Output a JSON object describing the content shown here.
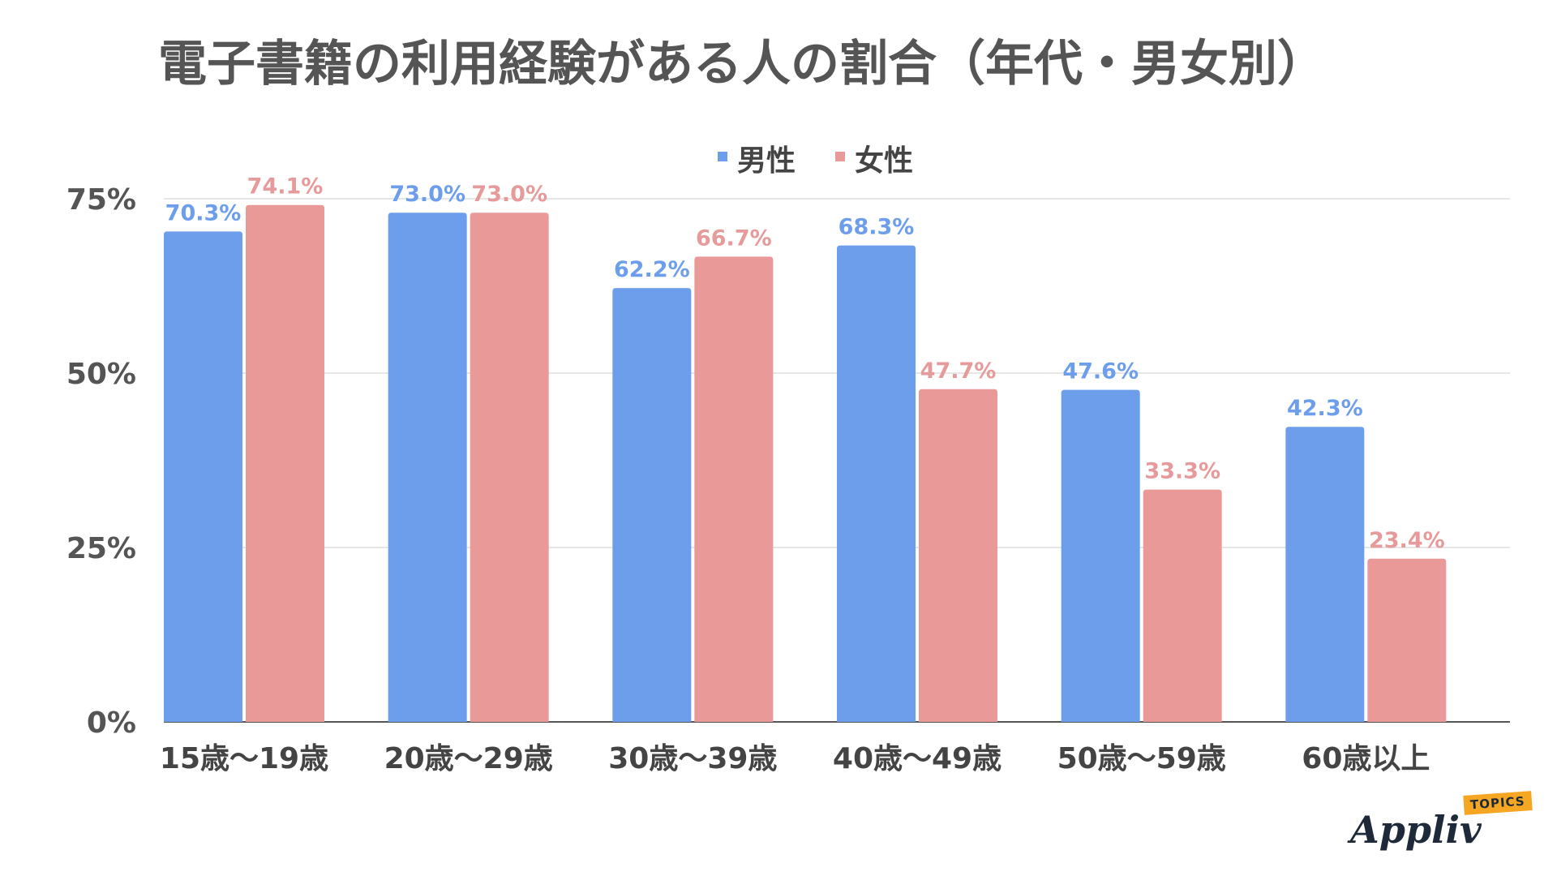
{
  "chart_data": {
    "type": "bar",
    "title": "電子書籍の利用経験がある人の割合（年代・男女別）",
    "categories": [
      "15歳〜19歳",
      "20歳〜29歳",
      "30歳〜39歳",
      "40歳〜49歳",
      "50歳〜59歳",
      "60歳以上"
    ],
    "series": [
      {
        "name": "男性",
        "color": "#6d9eeb",
        "label_color": "#6d9eeb",
        "values": [
          70.3,
          73.0,
          62.2,
          68.3,
          47.6,
          42.3
        ],
        "labels": [
          "70.3%",
          "73.0%",
          "62.2%",
          "68.3%",
          "47.6%",
          "42.3%"
        ]
      },
      {
        "name": "女性",
        "color": "#ea9999",
        "label_color": "#e69a9a",
        "values": [
          74.1,
          73.0,
          66.7,
          47.7,
          33.3,
          23.4
        ],
        "labels": [
          "74.1%",
          "73.0%",
          "66.7%",
          "47.7%",
          "33.3%",
          "23.4%"
        ]
      }
    ],
    "ylim": [
      0,
      75
    ],
    "yticks": [
      0,
      25,
      50,
      75
    ],
    "ytick_labels": [
      "0%",
      "25%",
      "50%",
      "75%"
    ],
    "grid": true,
    "legend_position": "top-center"
  },
  "logo": {
    "word": "Appliv",
    "badge": "TOPICS"
  }
}
